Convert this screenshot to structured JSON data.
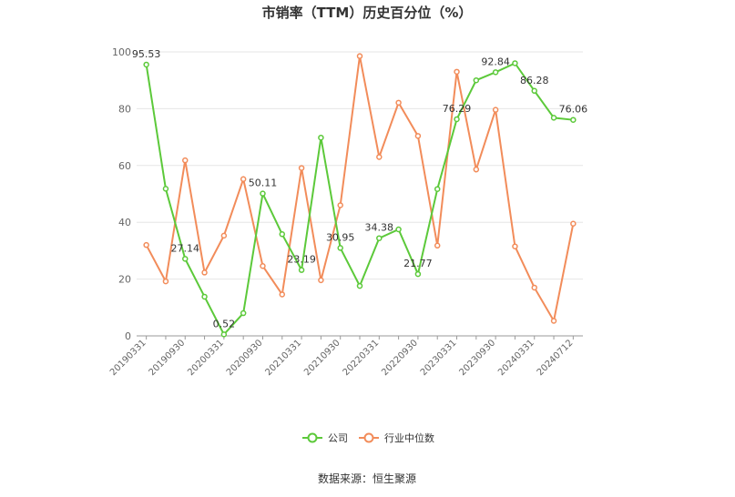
{
  "chart_data": {
    "type": "line",
    "title": "市销率（TTM）历史百分位（%）",
    "ylim": [
      0,
      100
    ],
    "yticks": [
      0,
      20,
      40,
      60,
      80,
      100
    ],
    "grid": true,
    "legend_position": "bottom",
    "x_tick_labels": [
      "20190331",
      "20190930",
      "20200331",
      "20200930",
      "20210331",
      "20210930",
      "20220331",
      "20220930",
      "20230331",
      "20230930",
      "20240331",
      "20240712"
    ],
    "x": [
      "20190331",
      "20190630",
      "20190930",
      "20191231",
      "20200331",
      "20200630",
      "20200930",
      "20201231",
      "20210331",
      "20210630",
      "20210930",
      "20211231",
      "20220331",
      "20220630",
      "20220930",
      "20221231",
      "20230331",
      "20230630",
      "20230930",
      "20231231",
      "20240331",
      "20240630",
      "20240712"
    ],
    "series": [
      {
        "name": "公司",
        "color": "#5cc93a",
        "values": [
          95.53,
          51.8,
          27.14,
          13.8,
          0.52,
          8.0,
          50.11,
          35.8,
          23.19,
          69.8,
          30.95,
          17.6,
          34.38,
          37.5,
          21.77,
          51.7,
          76.29,
          90.0,
          92.84,
          96.0,
          86.28,
          76.8,
          76.06
        ],
        "data_labels": [
          {
            "index": 0,
            "text": "95.53"
          },
          {
            "index": 2,
            "text": "27.14"
          },
          {
            "index": 4,
            "text": "0.52"
          },
          {
            "index": 6,
            "text": "50.11"
          },
          {
            "index": 8,
            "text": "23.19"
          },
          {
            "index": 10,
            "text": "30.95"
          },
          {
            "index": 12,
            "text": "34.38"
          },
          {
            "index": 14,
            "text": "21.77"
          },
          {
            "index": 16,
            "text": "76.29"
          },
          {
            "index": 18,
            "text": "92.84"
          },
          {
            "index": 20,
            "text": "86.28"
          },
          {
            "index": 22,
            "text": "76.06"
          }
        ]
      },
      {
        "name": "行业中位数",
        "color": "#f28c5a",
        "values": [
          32.0,
          19.2,
          61.8,
          22.3,
          35.3,
          55.2,
          24.6,
          14.6,
          59.1,
          19.6,
          46.0,
          98.5,
          63.0,
          82.1,
          70.4,
          31.8,
          93.0,
          58.6,
          79.6,
          31.5,
          17.0,
          5.3,
          39.5
        ]
      }
    ]
  },
  "source_text": "数据来源：恒生聚源"
}
